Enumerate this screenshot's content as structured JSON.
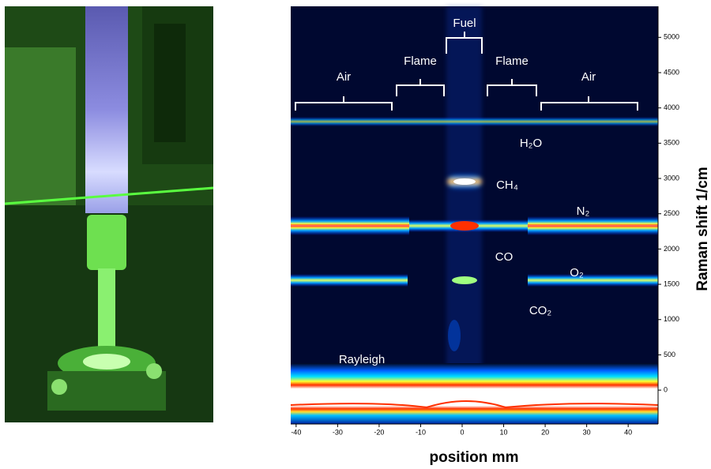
{
  "chart_data": {
    "type": "image",
    "xlabel": "position mm",
    "ylabel": "Raman shift 1/cm",
    "xlim": [
      -41.3,
      47.2
    ],
    "xticks": [
      -40,
      -30,
      -20,
      -10,
      0,
      10,
      20,
      30,
      40
    ],
    "ylim": [
      -480,
      5440
    ],
    "yticks": [
      0,
      500,
      1000,
      1500,
      2000,
      2500,
      3000,
      3500,
      4000,
      4500,
      5000
    ],
    "annotations": [
      "Fuel",
      "Flame",
      "Flame",
      "Air",
      "Air",
      "H₂O",
      "CH₄",
      "N₂",
      "CO",
      "O₂",
      "CO₂",
      "Rayleigh"
    ]
  }
}
